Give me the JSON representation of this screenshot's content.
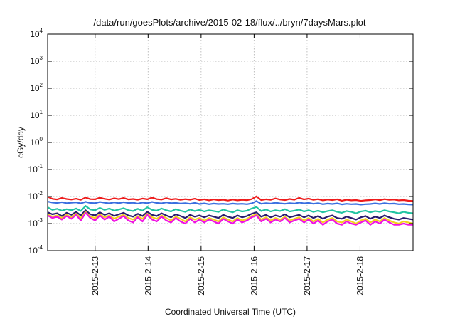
{
  "chart_data": {
    "type": "line",
    "title": "/data/run/goesPlots/archive/2015-02-18/flux/../bryn/7daysMars.plot",
    "xlabel": "Coordinated Universal Time (UTC)",
    "ylabel": "cGy/day",
    "yscale": "log",
    "ylim": [
      0.0001,
      10000
    ],
    "xlim": [
      "2015-02-12T02:30",
      "2015-02-19T00:00"
    ],
    "grid": true,
    "x_ticks": [
      "2015-2-13",
      "2015-2-14",
      "2015-2-15",
      "2015-2-16",
      "2015-2-17",
      "2015-2-18"
    ],
    "y_ticks": [
      {
        "base": "10",
        "exp": "-4"
      },
      {
        "base": "10",
        "exp": "-3"
      },
      {
        "base": "10",
        "exp": "-2"
      },
      {
        "base": "10",
        "exp": "-1"
      },
      {
        "base": "10",
        "exp": "0"
      },
      {
        "base": "10",
        "exp": "1"
      },
      {
        "base": "10",
        "exp": "2"
      },
      {
        "base": "10",
        "exp": "3"
      },
      {
        "base": "10",
        "exp": "4"
      }
    ],
    "series": [
      {
        "color": "#ee1c1c",
        "values": [
          0.0098,
          0.0082,
          0.0078,
          0.0088,
          0.0081,
          0.0077,
          0.0083,
          0.0075,
          0.0092,
          0.008,
          0.0079,
          0.009,
          0.0082,
          0.0077,
          0.0086,
          0.008,
          0.0088,
          0.0078,
          0.0081,
          0.0076,
          0.0084,
          0.0079,
          0.0091,
          0.008,
          0.0077,
          0.0087,
          0.0078,
          0.0082,
          0.0075,
          0.008,
          0.0076,
          0.0083,
          0.0074,
          0.0079,
          0.0072,
          0.0078,
          0.0073,
          0.0076,
          0.0071,
          0.0077,
          0.0072,
          0.0075,
          0.0073,
          0.008,
          0.0101,
          0.0074,
          0.0079,
          0.0075,
          0.0085,
          0.0077,
          0.0074,
          0.0081,
          0.0076,
          0.0089,
          0.0078,
          0.0084,
          0.0075,
          0.008,
          0.0072,
          0.0077,
          0.0074,
          0.0079,
          0.007,
          0.0076,
          0.0072,
          0.0074,
          0.0069,
          0.0072,
          0.0074,
          0.0078,
          0.0073,
          0.008,
          0.0075,
          0.0077,
          0.0072,
          0.0074,
          0.007,
          0.0068
        ]
      },
      {
        "color": "#3a6fe0",
        "values": [
          0.0065,
          0.006,
          0.0058,
          0.0062,
          0.0057,
          0.0059,
          0.0061,
          0.0056,
          0.0064,
          0.0058,
          0.0057,
          0.0063,
          0.0059,
          0.0056,
          0.0061,
          0.0057,
          0.0062,
          0.0058,
          0.0059,
          0.0055,
          0.006,
          0.0057,
          0.0063,
          0.0058,
          0.0056,
          0.0061,
          0.0057,
          0.0058,
          0.0055,
          0.0057,
          0.0054,
          0.0058,
          0.0053,
          0.0056,
          0.0052,
          0.0055,
          0.0053,
          0.0054,
          0.0052,
          0.0055,
          0.0053,
          0.0054,
          0.0052,
          0.0056,
          0.0068,
          0.0054,
          0.0057,
          0.0055,
          0.0059,
          0.0056,
          0.0054,
          0.0057,
          0.0055,
          0.006,
          0.0056,
          0.0058,
          0.0054,
          0.0057,
          0.0052,
          0.0055,
          0.0053,
          0.0056,
          0.0051,
          0.0054,
          0.0052,
          0.0053,
          0.005,
          0.0052,
          0.0053,
          0.0056,
          0.0053,
          0.0057,
          0.0054,
          0.0055,
          0.0052,
          0.0053,
          0.0051,
          0.005
        ]
      },
      {
        "color": "#22c4a2",
        "values": [
          0.004,
          0.0032,
          0.0035,
          0.003,
          0.0034,
          0.0031,
          0.0036,
          0.0029,
          0.0045,
          0.0033,
          0.0031,
          0.0038,
          0.0032,
          0.0036,
          0.003,
          0.0033,
          0.0037,
          0.0031,
          0.0029,
          0.0035,
          0.003,
          0.004,
          0.0032,
          0.003,
          0.0036,
          0.0031,
          0.0028,
          0.0034,
          0.003,
          0.0027,
          0.0033,
          0.0029,
          0.0032,
          0.0028,
          0.0031,
          0.0029,
          0.0027,
          0.0033,
          0.0029,
          0.0026,
          0.0031,
          0.0028,
          0.003,
          0.0036,
          0.0041,
          0.0029,
          0.0033,
          0.0028,
          0.0031,
          0.0029,
          0.0034,
          0.0028,
          0.003,
          0.0033,
          0.0028,
          0.0031,
          0.0027,
          0.003,
          0.0026,
          0.0029,
          0.0031,
          0.0027,
          0.0025,
          0.0029,
          0.0027,
          0.0024,
          0.0028,
          0.003,
          0.0026,
          0.0029,
          0.0027,
          0.0031,
          0.0028,
          0.0026,
          0.0024,
          0.0027,
          0.0025,
          0.0024
        ]
      },
      {
        "color": "#2a1c6e",
        "values": [
          0.0026,
          0.0022,
          0.0024,
          0.0019,
          0.0025,
          0.0021,
          0.0027,
          0.002,
          0.0031,
          0.0022,
          0.002,
          0.0026,
          0.0021,
          0.0024,
          0.0019,
          0.0022,
          0.0025,
          0.002,
          0.0018,
          0.0023,
          0.0019,
          0.0027,
          0.0021,
          0.0019,
          0.0024,
          0.002,
          0.0017,
          0.0022,
          0.0019,
          0.0016,
          0.0021,
          0.0018,
          0.002,
          0.0017,
          0.002,
          0.0018,
          0.0016,
          0.0021,
          0.0018,
          0.0016,
          0.002,
          0.0017,
          0.0019,
          0.0023,
          0.0026,
          0.0018,
          0.0021,
          0.0017,
          0.002,
          0.0018,
          0.0022,
          0.0017,
          0.0019,
          0.0021,
          0.0017,
          0.002,
          0.0016,
          0.0019,
          0.0015,
          0.0018,
          0.002,
          0.0016,
          0.0015,
          0.0018,
          0.0016,
          0.0014,
          0.0017,
          0.0019,
          0.0015,
          0.0018,
          0.0016,
          0.002,
          0.0017,
          0.0015,
          0.0014,
          0.0016,
          0.0015,
          0.0014
        ]
      },
      {
        "color": "#f2d01c",
        "values": [
          0.0022,
          0.0018,
          0.002,
          0.0016,
          0.0021,
          0.0017,
          0.0023,
          0.0016,
          0.0027,
          0.0018,
          0.0016,
          0.0022,
          0.0017,
          0.002,
          0.0015,
          0.0018,
          0.0021,
          0.0016,
          0.0014,
          0.0019,
          0.0015,
          0.0023,
          0.0017,
          0.0015,
          0.002,
          0.0016,
          0.0013,
          0.0018,
          0.0015,
          0.0012,
          0.0017,
          0.0014,
          0.0016,
          0.0013,
          0.0016,
          0.0014,
          0.0012,
          0.0017,
          0.0014,
          0.0012,
          0.0016,
          0.0013,
          0.0015,
          0.0019,
          0.0022,
          0.0014,
          0.0017,
          0.0013,
          0.0016,
          0.0014,
          0.0018,
          0.0013,
          0.0015,
          0.0017,
          0.0013,
          0.0016,
          0.0012,
          0.0015,
          0.0011,
          0.0014,
          0.0016,
          0.0012,
          0.0011,
          0.0014,
          0.0012,
          0.001,
          0.0013,
          0.0015,
          0.0011,
          0.0014,
          0.0012,
          0.0016,
          0.0013,
          0.0011,
          0.001,
          0.0012,
          0.0011,
          0.001
        ]
      },
      {
        "color": "#f012e4",
        "values": [
          0.002,
          0.0016,
          0.0018,
          0.0014,
          0.0019,
          0.0015,
          0.0021,
          0.0013,
          0.0025,
          0.0016,
          0.0013,
          0.002,
          0.0014,
          0.0018,
          0.0012,
          0.0015,
          0.0019,
          0.0013,
          0.0011,
          0.0017,
          0.0012,
          0.0021,
          0.0014,
          0.0012,
          0.0018,
          0.0013,
          0.0011,
          0.0016,
          0.0012,
          0.001,
          0.0015,
          0.0011,
          0.0014,
          0.0011,
          0.0014,
          0.0012,
          0.001,
          0.0015,
          0.0012,
          0.001,
          0.0014,
          0.0011,
          0.0013,
          0.0017,
          0.002,
          0.0012,
          0.0015,
          0.0011,
          0.0014,
          0.0012,
          0.0016,
          0.0011,
          0.0013,
          0.0015,
          0.0011,
          0.0014,
          0.001,
          0.0013,
          0.0009,
          0.0012,
          0.0014,
          0.001,
          0.0009,
          0.0012,
          0.001,
          0.0009,
          0.0011,
          0.0013,
          0.0009,
          0.0012,
          0.001,
          0.0014,
          0.0011,
          0.0009,
          0.0009,
          0.001,
          0.0009,
          0.0009
        ]
      }
    ]
  }
}
